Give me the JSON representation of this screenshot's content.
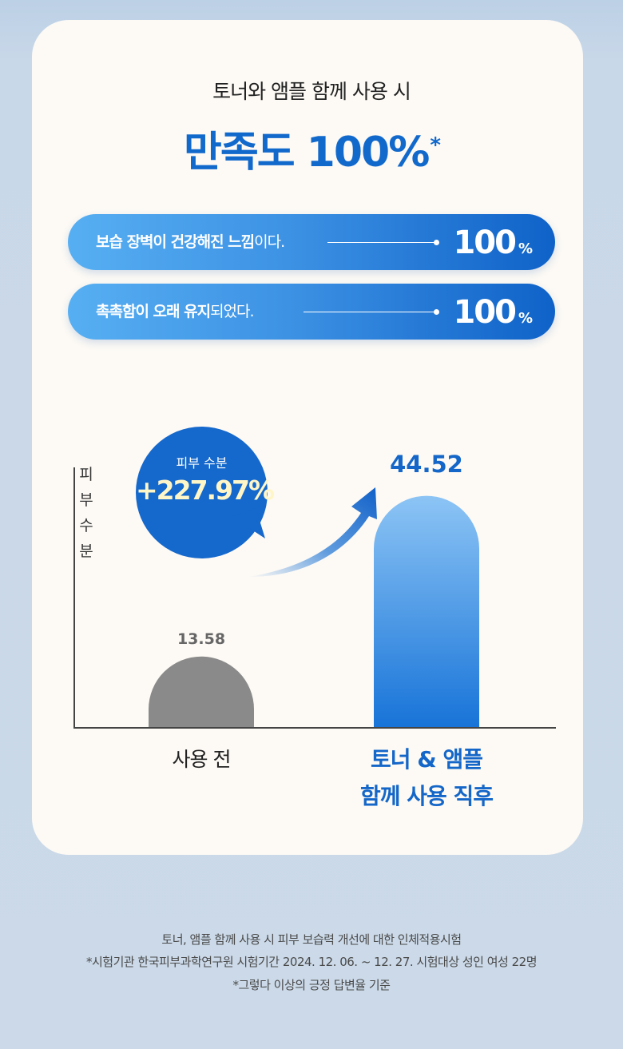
{
  "header": {
    "subtitle": "토너와 앰플 함께 사용 시",
    "headline": "만족도 100%",
    "headline_mark": "*"
  },
  "pills": [
    {
      "bold": "보습 장벽이 건강해진 느낌",
      "rest": "이다.",
      "value": "100",
      "unit": "%"
    },
    {
      "bold": "촉촉함이 오래 유지",
      "rest": "되었다.",
      "value": "100",
      "unit": "%"
    }
  ],
  "bubble": {
    "label": "피부 수분",
    "value": "+227.97%"
  },
  "chart_data": {
    "type": "bar",
    "ylabel": "피부 수분",
    "ylim": [
      0,
      50
    ],
    "categories": [
      "사용 전",
      "토너 & 앰플 함께 사용 직후"
    ],
    "category_lines": [
      [
        "사용 전"
      ],
      [
        "토너 & 앰플",
        "함께 사용 직후"
      ]
    ],
    "values": [
      13.58,
      44.52
    ],
    "value_labels": [
      "13.58",
      "44.52"
    ],
    "colors": [
      "#8a8a8a",
      "#2a86e0"
    ],
    "annotation": "+227.97%"
  },
  "footnotes": [
    "토너, 앰플 함께 사용 시 피부 보습력 개선에 대한 인체적용시험",
    "*시험기관 한국피부과학연구원 시험기간 2024. 12. 06. ~ 12. 27. 시험대상 성인 여성 22명",
    "*그렇다 이상의 긍정 답변율 기준"
  ]
}
